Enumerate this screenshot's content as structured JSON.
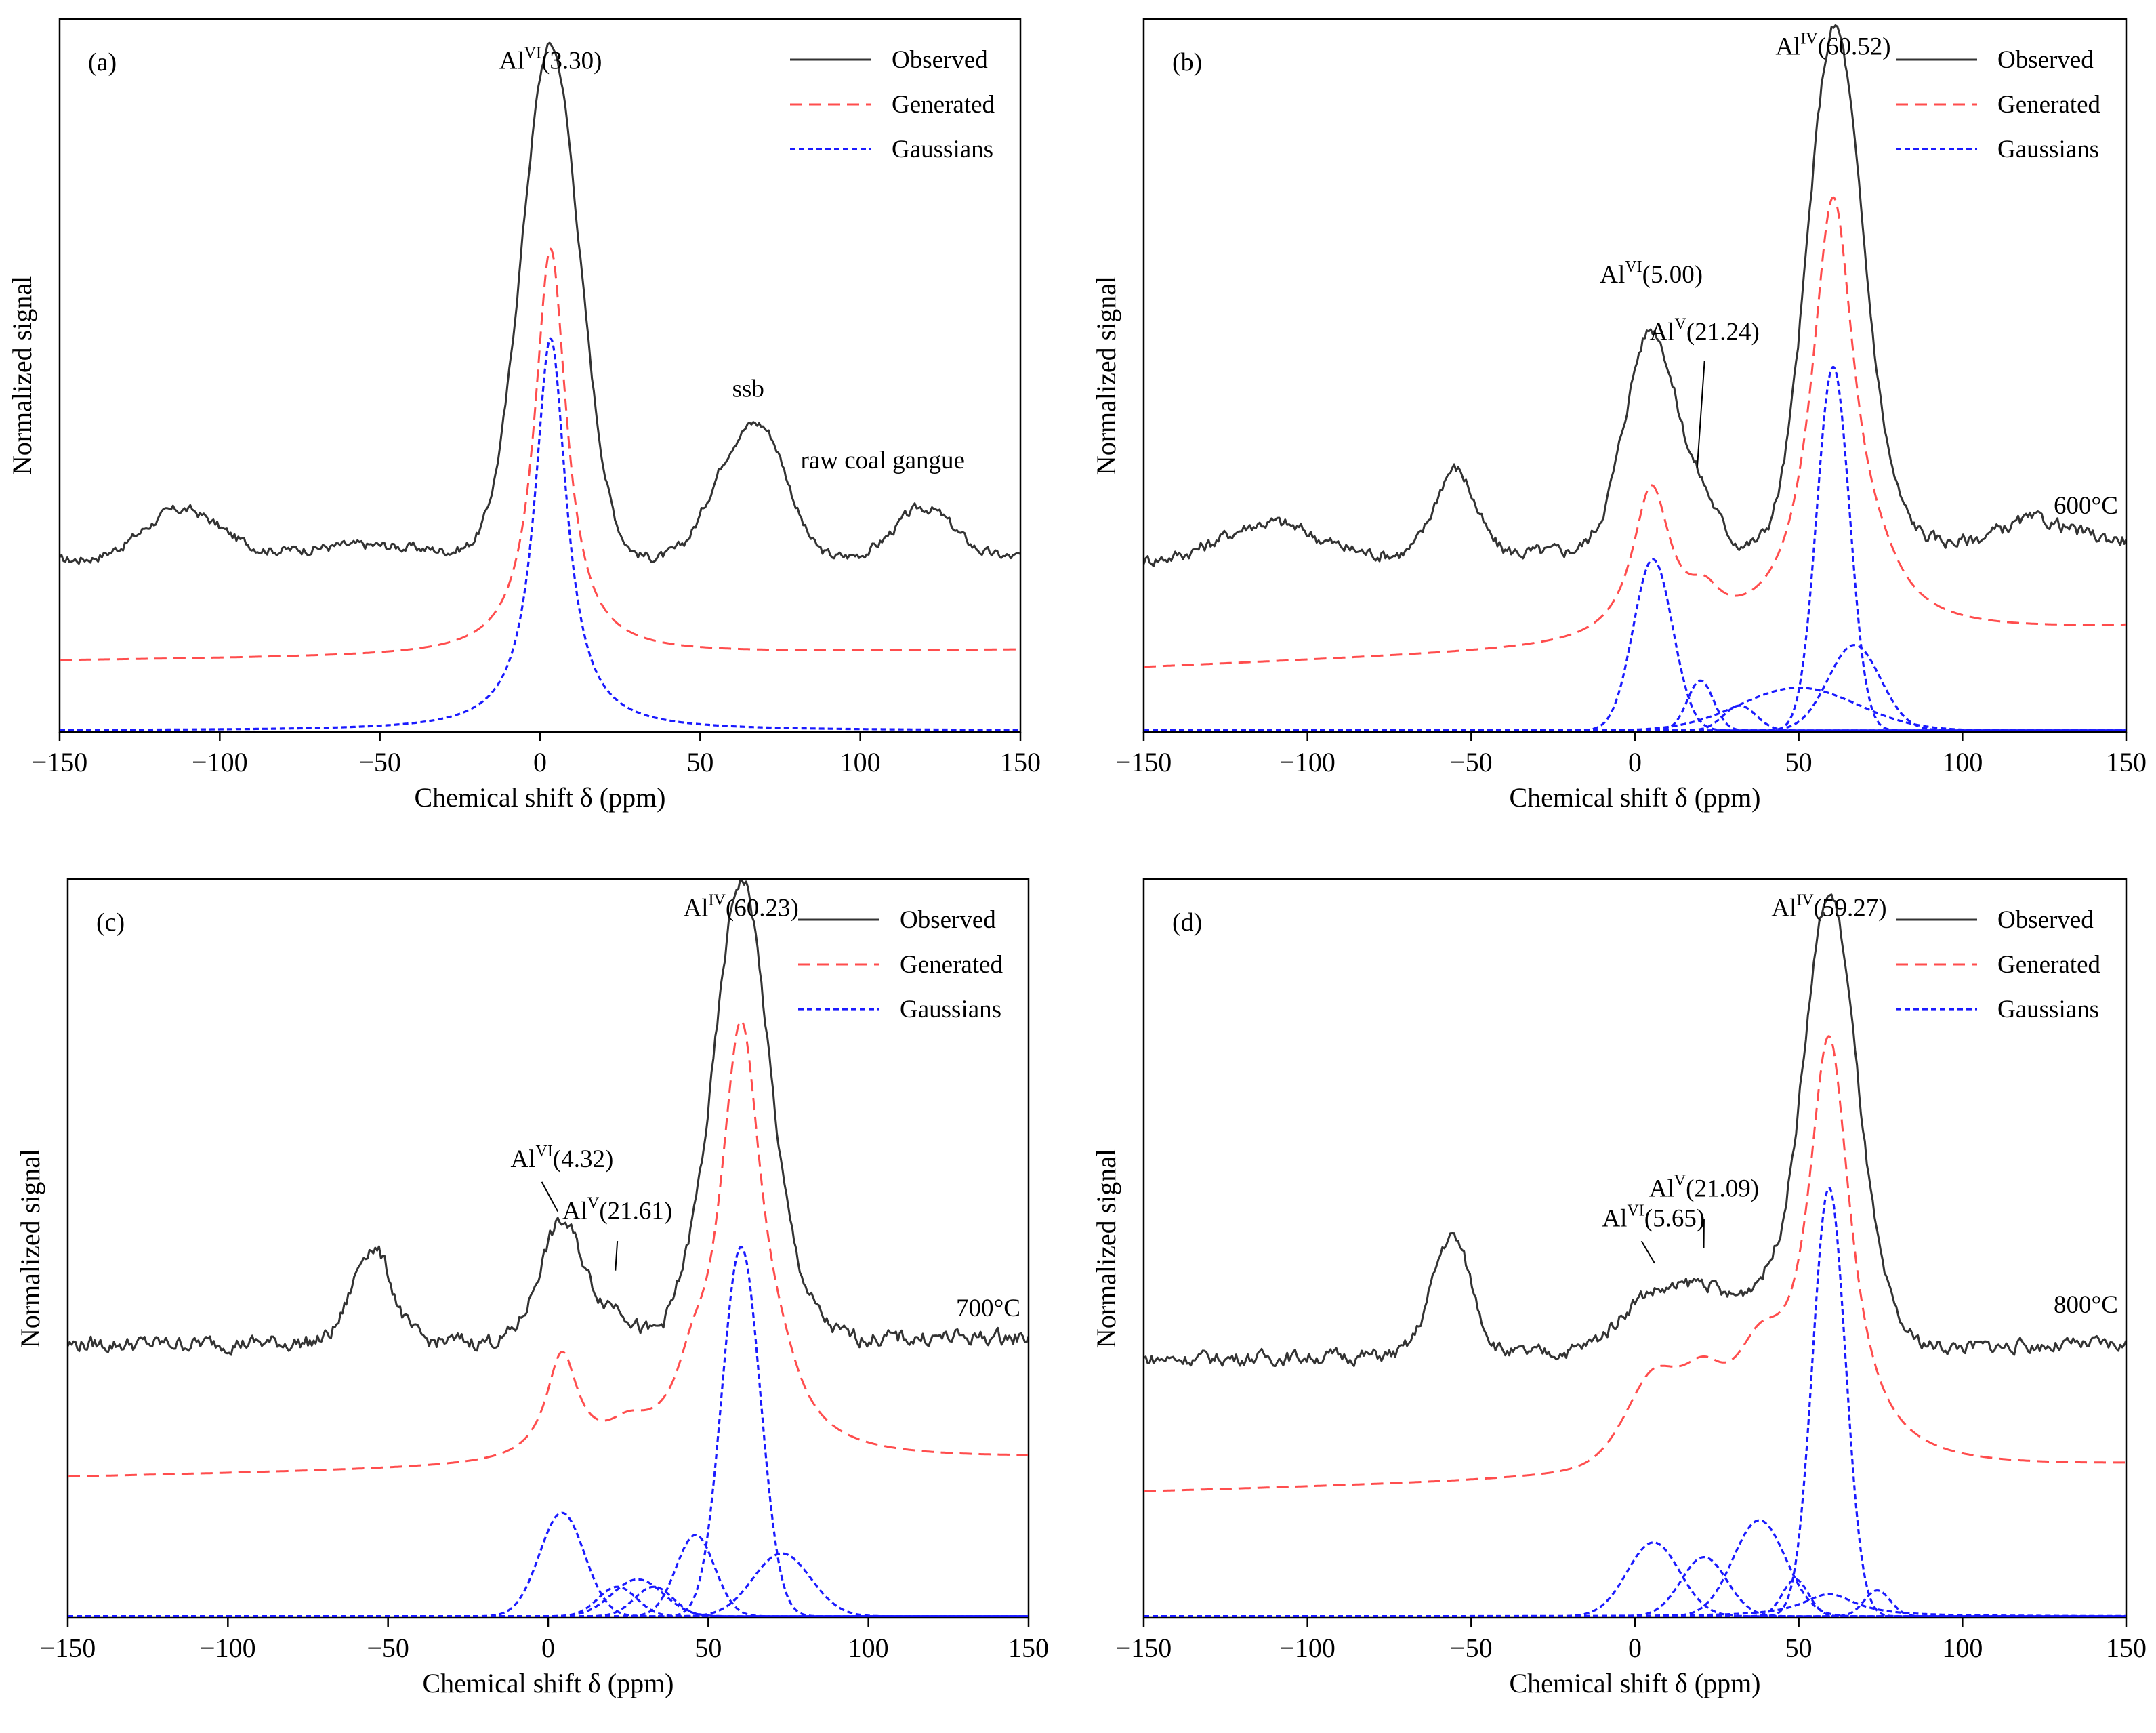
{
  "figure": {
    "xlabel": "Chemical shift δ (ppm)",
    "ylabel": "Normalized signal"
  },
  "legend": {
    "observed": "Observed",
    "generated": "Generated",
    "gaussians": "Gaussians"
  },
  "colors": {
    "observed": "#333333",
    "generated": "#ff4d4d",
    "gaussians": "#1a1aff",
    "axis": "#000000"
  },
  "chart_data": [
    {
      "type": "line",
      "panel": "(a)",
      "xlim": [
        -150,
        150
      ],
      "xticks": [
        -150,
        -100,
        -50,
        0,
        50,
        100,
        150
      ],
      "ylim": [
        0,
        1
      ],
      "annotations": [
        {
          "pre": "Al",
          "sup": "VI",
          "post": "(3.30)",
          "x": 3.3,
          "y": 0.93
        },
        {
          "pre": "ssb",
          "sup": "",
          "post": "",
          "x": 65,
          "y": 0.47
        },
        {
          "pre": "raw coal gangue",
          "sup": "",
          "post": "",
          "x": 107,
          "y": 0.37
        }
      ],
      "sample": "",
      "series": [
        {
          "name": "Observed",
          "kind": "observed",
          "baseline": 0.24,
          "baseline_end": 0.245,
          "noise": 0.006,
          "peaks": [
            {
              "c": -112,
              "a": 0.07,
              "w": 12
            },
            {
              "c": -55,
              "a": 0.02,
              "w": 25
            },
            {
              "c": 3.3,
              "a": 0.72,
              "w": 9
            },
            {
              "c": 60,
              "a": 0.13,
              "w": 8
            },
            {
              "c": 72,
              "a": 0.13,
              "w": 7
            },
            {
              "c": 120,
              "a": 0.07,
              "w": 9
            }
          ]
        },
        {
          "name": "Generated",
          "kind": "generated",
          "baseline": 0.1,
          "baseline_end": 0.115,
          "noise": 0,
          "lorentz": [
            {
              "c": 3.3,
              "a": 0.57,
              "w": 6
            }
          ]
        },
        {
          "name": "Gaussians",
          "kind": "gaussians",
          "baseline": 0.0,
          "noise": 0,
          "lorentz": [
            {
              "c": 3.3,
              "a": 0.55,
              "w": 6
            }
          ]
        }
      ]
    },
    {
      "type": "line",
      "panel": "(b)",
      "xlim": [
        -150,
        150
      ],
      "xticks": [
        -150,
        -100,
        -50,
        0,
        50,
        100,
        150
      ],
      "ylim": [
        0,
        1
      ],
      "annotations": [
        {
          "pre": "Al",
          "sup": "IV",
          "post": "(60.52)",
          "x": 60.52,
          "y": 0.95
        },
        {
          "pre": "Al",
          "sup": "VI",
          "post": "(5.00)",
          "x": 5.0,
          "y": 0.63
        },
        {
          "pre": "Al",
          "sup": "V",
          "post": "(21.24)",
          "x": 21.24,
          "y": 0.55
        }
      ],
      "sample": "600°C",
      "series": [
        {
          "name": "Observed",
          "kind": "observed",
          "baseline": 0.24,
          "baseline_end": 0.27,
          "noise": 0.008,
          "peaks": [
            {
              "c": -112,
              "a": 0.05,
              "w": 14
            },
            {
              "c": -55,
              "a": 0.12,
              "w": 6
            },
            {
              "c": 5,
              "a": 0.31,
              "w": 8
            },
            {
              "c": 21.24,
              "a": 0.05,
              "w": 5
            },
            {
              "c": 60.52,
              "a": 0.65,
              "w": 8
            },
            {
              "c": 68,
              "a": 0.1,
              "w": 10
            },
            {
              "c": 122,
              "a": 0.03,
              "w": 10
            }
          ]
        },
        {
          "name": "Generated",
          "kind": "generated",
          "baseline": 0.09,
          "baseline_end": 0.145,
          "noise": 0,
          "lorentz": [
            {
              "c": 5,
              "a": 0.21,
              "w": 7
            },
            {
              "c": 21.24,
              "a": 0.04,
              "w": 6
            },
            {
              "c": 60.52,
              "a": 0.61,
              "w": 8
            },
            {
              "c": 75,
              "a": 0.03,
              "w": 8
            }
          ]
        },
        {
          "name": "Gaussians",
          "kind": "gaussians",
          "baseline": 0.0,
          "noise": 0,
          "gauss": [
            {
              "c": 5.5,
              "a": 0.24,
              "w": 6
            },
            {
              "c": 20,
              "a": 0.07,
              "w": 4
            },
            {
              "c": 32,
              "a": 0.035,
              "w": 5
            },
            {
              "c": 50,
              "a": 0.06,
              "w": 18
            },
            {
              "c": 60.52,
              "a": 0.51,
              "w": 5
            },
            {
              "c": 67,
              "a": 0.12,
              "w": 8
            }
          ]
        }
      ]
    },
    {
      "type": "line",
      "panel": "(c)",
      "xlim": [
        -150,
        150
      ],
      "xticks": [
        -150,
        -100,
        -50,
        0,
        50,
        100,
        150
      ],
      "ylim": [
        0,
        1
      ],
      "annotations": [
        {
          "pre": "Al",
          "sup": "IV",
          "post": "(60.23)",
          "x": 60.23,
          "y": 0.95
        },
        {
          "pre": "Al",
          "sup": "VI",
          "post": "(4.32)",
          "x": 4.32,
          "y": 0.61
        },
        {
          "pre": "Al",
          "sup": "V",
          "post": "(21.61)",
          "x": 21.61,
          "y": 0.54
        }
      ],
      "sample": "700°C",
      "series": [
        {
          "name": "Observed",
          "kind": "observed",
          "baseline": 0.37,
          "baseline_end": 0.38,
          "noise": 0.009,
          "peaks": [
            {
              "c": -55,
              "a": 0.13,
              "w": 6
            },
            {
              "c": 4.32,
              "a": 0.16,
              "w": 7
            },
            {
              "c": 21.61,
              "a": 0.04,
              "w": 5
            },
            {
              "c": 45,
              "a": 0.06,
              "w": 6
            },
            {
              "c": 60.23,
              "a": 0.61,
              "w": 8
            },
            {
              "c": 75,
              "a": 0.06,
              "w": 8
            }
          ]
        },
        {
          "name": "Generated",
          "kind": "generated",
          "baseline": 0.19,
          "baseline_end": 0.215,
          "noise": 0,
          "lorentz": [
            {
              "c": 4.32,
              "a": 0.14,
              "w": 6
            },
            {
              "c": 25,
              "a": 0.03,
              "w": 8
            },
            {
              "c": 45,
              "a": 0.06,
              "w": 6
            },
            {
              "c": 60.23,
              "a": 0.58,
              "w": 8
            },
            {
              "c": 73,
              "a": 0.04,
              "w": 7
            }
          ]
        },
        {
          "name": "Gaussians",
          "kind": "gaussians",
          "baseline": 0.0,
          "noise": 0,
          "gauss": [
            {
              "c": 4.32,
              "a": 0.14,
              "w": 7
            },
            {
              "c": 21.61,
              "a": 0.04,
              "w": 6
            },
            {
              "c": 28,
              "a": 0.05,
              "w": 8
            },
            {
              "c": 33,
              "a": 0.04,
              "w": 6
            },
            {
              "c": 46,
              "a": 0.11,
              "w": 6
            },
            {
              "c": 60.23,
              "a": 0.5,
              "w": 6
            },
            {
              "c": 73,
              "a": 0.085,
              "w": 9
            }
          ]
        }
      ]
    },
    {
      "type": "line",
      "panel": "(d)",
      "xlim": [
        -150,
        150
      ],
      "xticks": [
        -150,
        -100,
        -50,
        0,
        50,
        100,
        150
      ],
      "ylim": [
        0,
        1
      ],
      "annotations": [
        {
          "pre": "Al",
          "sup": "IV",
          "post": "(59.27)",
          "x": 59.27,
          "y": 0.95
        },
        {
          "pre": "Al",
          "sup": "VI",
          "post": "(5.65)",
          "x": 5.65,
          "y": 0.53
        },
        {
          "pre": "Al",
          "sup": "V",
          "post": "(21.09)",
          "x": 21.09,
          "y": 0.57
        }
      ],
      "sample": "800°C",
      "series": [
        {
          "name": "Observed",
          "kind": "observed",
          "baseline": 0.35,
          "baseline_end": 0.37,
          "noise": 0.008,
          "peaks": [
            {
              "c": -56,
              "a": 0.16,
              "w": 6
            },
            {
              "c": 5.65,
              "a": 0.08,
              "w": 10
            },
            {
              "c": 21.09,
              "a": 0.06,
              "w": 6
            },
            {
              "c": 38,
              "a": 0.08,
              "w": 8
            },
            {
              "c": 59.27,
              "a": 0.6,
              "w": 8
            },
            {
              "c": 72,
              "a": 0.04,
              "w": 8
            }
          ]
        },
        {
          "name": "Generated",
          "kind": "generated",
          "baseline": 0.17,
          "baseline_end": 0.205,
          "noise": 0,
          "lorentz": [
            {
              "c": 5.65,
              "a": 0.05,
              "w": 10
            },
            {
              "c": 21.09,
              "a": 0.04,
              "w": 8
            },
            {
              "c": 38,
              "a": 0.05,
              "w": 9
            },
            {
              "c": 59.27,
              "a": 0.58,
              "w": 8
            }
          ],
          "gauss": [
            {
              "c": 5.65,
              "a": 0.07,
              "w": 9
            },
            {
              "c": 21.09,
              "a": 0.05,
              "w": 7
            },
            {
              "c": 38,
              "a": 0.07,
              "w": 8
            }
          ]
        },
        {
          "name": "Gaussians",
          "kind": "gaussians",
          "baseline": 0.0,
          "noise": 0,
          "gauss": [
            {
              "c": 5.65,
              "a": 0.1,
              "w": 8
            },
            {
              "c": 21.09,
              "a": 0.08,
              "w": 7
            },
            {
              "c": 38,
              "a": 0.13,
              "w": 8
            },
            {
              "c": 49,
              "a": 0.05,
              "w": 4
            },
            {
              "c": 59.27,
              "a": 0.58,
              "w": 5
            },
            {
              "c": 74,
              "a": 0.035,
              "w": 4
            }
          ],
          "lorentz": [
            {
              "c": 59.27,
              "a": 0.03,
              "w": 10
            }
          ]
        }
      ]
    }
  ]
}
